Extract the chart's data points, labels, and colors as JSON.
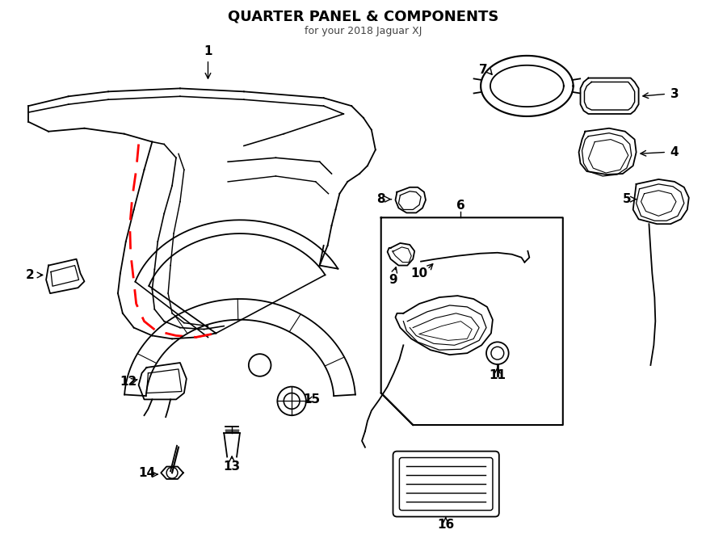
{
  "title": "QUARTER PANEL & COMPONENTS",
  "subtitle": "for your 2018 Jaguar XJ",
  "bg_color": "#ffffff",
  "line_color": "#000000",
  "red_dash_color": "#ff0000",
  "fig_width": 9.0,
  "fig_height": 6.61,
  "dpi": 100
}
